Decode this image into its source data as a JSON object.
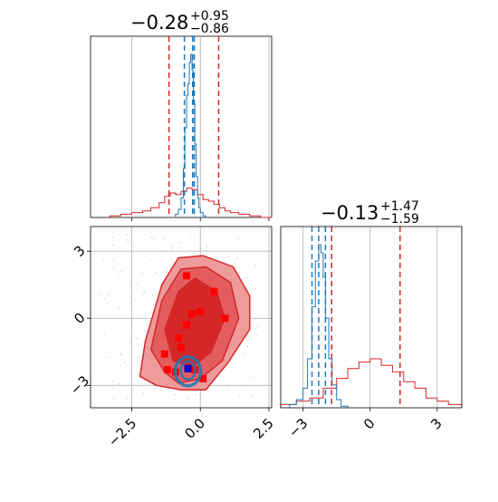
{
  "chart_data": {
    "type": "corner",
    "params": [
      {
        "title_main": "−0.28",
        "title_upper": "+0.95",
        "title_lower": "−0.86",
        "median": -0.28,
        "lo": -1.14,
        "hi": 0.67
      },
      {
        "title_main": "−0.13",
        "title_upper": "+1.47",
        "title_lower": "−1.59",
        "median": -0.13,
        "lo": -1.72,
        "hi": 1.34
      }
    ],
    "axis_ranges": {
      "x0": [
        -4.0,
        2.6
      ],
      "x1": [
        -4.0,
        4.1
      ]
    },
    "x_ticks": {
      "values": [
        -2.5,
        0.0,
        2.5
      ],
      "labels": [
        "−2.5",
        "0.0",
        "2.5"
      ]
    },
    "y_ticks": {
      "values": [
        3,
        0,
        -3
      ],
      "labels": [
        "3",
        "0",
        "−3"
      ]
    },
    "x1_ticks": {
      "values": [
        -3,
        0,
        3
      ],
      "labels": [
        "−3",
        "0",
        "3"
      ]
    },
    "grid": true,
    "series": [
      {
        "color": "#d62728",
        "quantiles_x0": [
          -1.14,
          0.67
        ],
        "quantiles_x1": [
          -1.72,
          1.34
        ],
        "hist_x0": {
          "edges": [
            -3.3,
            -2.9,
            -2.5,
            -2.1,
            -1.8,
            -1.5,
            -1.3,
            -1.1,
            -0.9,
            -0.7,
            -0.5,
            -0.3,
            -0.1,
            0.1,
            0.3,
            0.5,
            0.7,
            0.9,
            1.1,
            1.4,
            1.8,
            2.2,
            2.6
          ],
          "counts": [
            1,
            2,
            3,
            4,
            6,
            9,
            13,
            15,
            14,
            16,
            18,
            17,
            14,
            11,
            10,
            8,
            6,
            4,
            3,
            2,
            1,
            0
          ]
        },
        "hist_x1": {
          "edges": [
            -4.0,
            -3.3,
            -2.7,
            -2.1,
            -1.5,
            -1.0,
            -0.5,
            0.0,
            0.5,
            1.0,
            1.5,
            2.0,
            2.5,
            3.0,
            3.5,
            4.1
          ],
          "counts": [
            1,
            2,
            3,
            6,
            9,
            12,
            14,
            15,
            13,
            11,
            8,
            6,
            3,
            2,
            1
          ]
        },
        "scatter": [
          [
            -0.5,
            1.9
          ],
          [
            -0.5,
            -0.3
          ],
          [
            0.5,
            1.2
          ],
          [
            0.0,
            0.3
          ],
          [
            -0.3,
            0.2
          ],
          [
            -1.3,
            -1.6
          ],
          [
            -0.8,
            -0.9
          ],
          [
            -0.7,
            -1.3
          ],
          [
            -1.2,
            -2.3
          ],
          [
            -0.9,
            -2.4
          ],
          [
            -0.2,
            -2.3
          ],
          [
            0.9,
            0.0
          ],
          [
            0.1,
            -2.7
          ]
        ]
      },
      {
        "color": "#1f77b4",
        "quantiles_x0": [
          -0.58,
          -0.22
        ],
        "quantiles_x1": [
          -2.6,
          -2.0
        ],
        "hist_x0": {
          "edges": [
            -0.9,
            -0.8,
            -0.7,
            -0.62,
            -0.56,
            -0.5,
            -0.45,
            -0.4,
            -0.35,
            -0.3,
            -0.25,
            -0.2,
            -0.15,
            -0.1,
            -0.05,
            0.0,
            0.1,
            0.2
          ],
          "counts": [
            2,
            5,
            12,
            30,
            55,
            75,
            82,
            95,
            100,
            90,
            70,
            45,
            25,
            12,
            6,
            3,
            1
          ]
        },
        "hist_x1": {
          "edges": [
            -3.6,
            -3.3,
            -3.0,
            -2.8,
            -2.6,
            -2.45,
            -2.3,
            -2.2,
            -2.1,
            -2.0,
            -1.85,
            -1.7,
            -1.5,
            -1.3,
            -1.0
          ],
          "counts": [
            2,
            5,
            12,
            30,
            62,
            90,
            100,
            95,
            80,
            55,
            30,
            14,
            5,
            1
          ]
        },
        "marker": [
          -0.45,
          -2.25
        ]
      }
    ]
  }
}
